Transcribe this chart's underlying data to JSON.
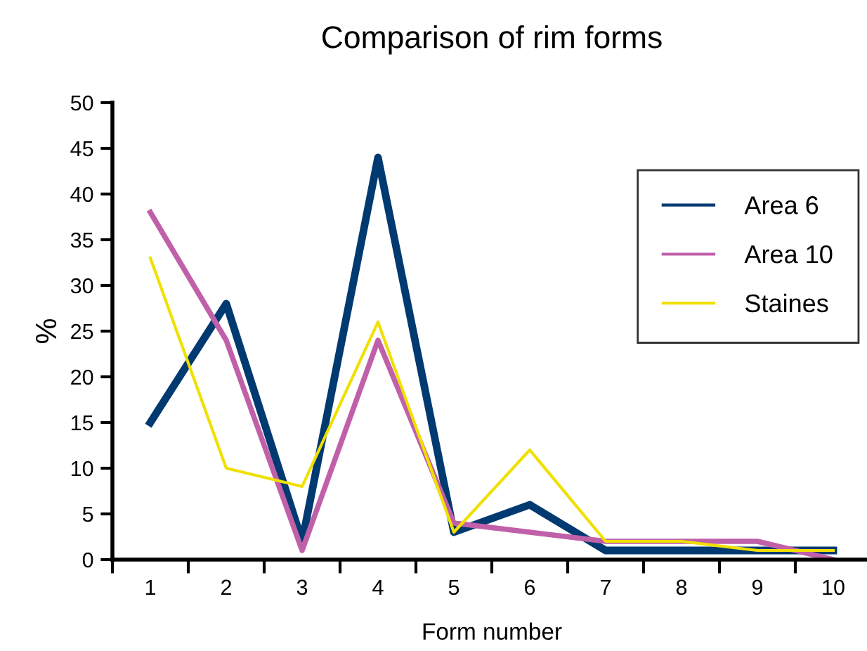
{
  "chart_data": {
    "type": "line",
    "title": "Comparison of rim forms",
    "xlabel": "Form number",
    "ylabel": "%",
    "categories": [
      "1",
      "2",
      "3",
      "4",
      "5",
      "6",
      "7",
      "8",
      "9",
      "10"
    ],
    "series": [
      {
        "name": "Area 6",
        "color": "#003a70",
        "values": [
          15,
          28,
          2,
          44,
          3,
          6,
          1,
          1,
          1,
          1
        ]
      },
      {
        "name": "Area 10",
        "color": "#c060a8",
        "values": [
          38,
          24,
          1,
          24,
          4,
          3,
          2,
          2,
          2,
          0
        ]
      },
      {
        "name": "Staines",
        "color": "#f0e000",
        "values": [
          33,
          10,
          8,
          26,
          3,
          12,
          2,
          2,
          1,
          1
        ]
      }
    ],
    "ylim": [
      0,
      50
    ],
    "yticks": [
      0,
      5,
      10,
      15,
      20,
      25,
      30,
      35,
      40,
      45,
      50
    ],
    "grid": false,
    "legend": "top right",
    "marker": "none",
    "line_style": "solid"
  }
}
